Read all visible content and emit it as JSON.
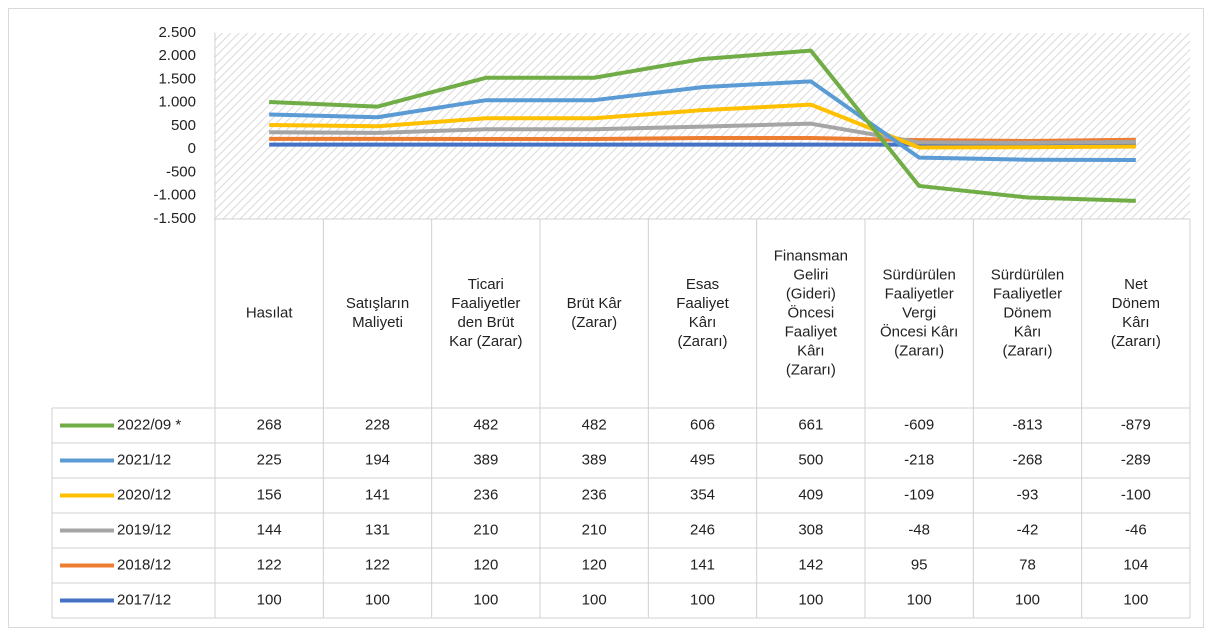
{
  "chart_data": {
    "type": "line",
    "stacked": true,
    "categories": [
      "Hasılat",
      "Satışların\nMaliyeti",
      "Ticari\nFaaliyetler\nden Brüt\nKar (Zarar)",
      "Brüt Kâr\n(Zarar)",
      "Esas\nFaaliyet\nKârı\n(Zararı)",
      "Finansman\nGeliri\n(Gideri)\nÖncesi\nFaaliyet\nKârı\n(Zararı)",
      "Sürdürülen\nFaaliyetler\nVergi\nÖncesi Kârı\n(Zararı)",
      "Sürdürülen\nFaaliyetler\nDönem\nKârı\n(Zararı)",
      "Net\nDönem\nKârı\n(Zararı)"
    ],
    "series": [
      {
        "name": "2022/09 *",
        "color": "#70ad47",
        "values": [
          268,
          228,
          482,
          482,
          606,
          661,
          -609,
          -813,
          -879
        ]
      },
      {
        "name": "2021/12",
        "color": "#5b9bd5",
        "values": [
          225,
          194,
          389,
          389,
          495,
          500,
          -218,
          -268,
          -289
        ]
      },
      {
        "name": "2020/12",
        "color": "#ffc000",
        "values": [
          156,
          141,
          236,
          236,
          354,
          409,
          -109,
          -93,
          -100
        ]
      },
      {
        "name": "2019/12",
        "color": "#a5a5a5",
        "values": [
          144,
          131,
          210,
          210,
          246,
          308,
          -48,
          -42,
          -46
        ]
      },
      {
        "name": "2018/12",
        "color": "#ed7d31",
        "values": [
          122,
          122,
          120,
          120,
          141,
          142,
          95,
          78,
          104
        ]
      },
      {
        "name": "2017/12",
        "color": "#4472c4",
        "values": [
          100,
          100,
          100,
          100,
          100,
          100,
          100,
          100,
          100
        ]
      }
    ],
    "ylim": [
      -1500,
      2500
    ],
    "yticks": [
      {
        "value": 2500,
        "label": "2.500"
      },
      {
        "value": 2000,
        "label": "2.000"
      },
      {
        "value": 1500,
        "label": "1.500"
      },
      {
        "value": 1000,
        "label": "1.000"
      },
      500,
      0,
      -500,
      {
        "value": -1000,
        "label": "-1.000"
      },
      {
        "value": -1500,
        "label": "-1.500"
      }
    ]
  }
}
